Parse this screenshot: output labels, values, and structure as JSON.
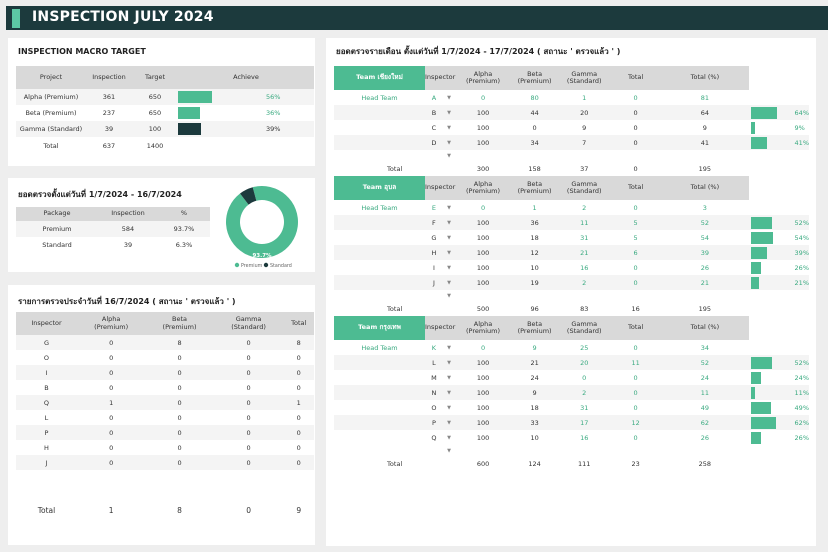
{
  "header": {
    "title": "INSPECTION JULY 2024"
  },
  "macro": {
    "title": "INSPECTION MACRO TARGET",
    "headers": [
      "Project",
      "Inspection",
      "Target",
      "Achieve"
    ],
    "rows": [
      {
        "project": "Alpha (Premium)",
        "inspection": "361",
        "target": "650",
        "pct": "56%",
        "fraction": 0.56,
        "color": "#4dbb92"
      },
      {
        "project": "Beta (Premium)",
        "inspection": "237",
        "target": "650",
        "pct": "36%",
        "fraction": 0.36,
        "color": "#4dbb92"
      },
      {
        "project": "Gamma (Standard)",
        "inspection": "39",
        "target": "100",
        "pct": "39%",
        "fraction": 0.39,
        "color": "#1c3a3d"
      }
    ],
    "total": {
      "label": "Total",
      "inspection": "637",
      "target": "1400"
    }
  },
  "summary": {
    "title": "ยอดตรวจตั้งแต่วันที่ 1/7/2024 - 16/7/2024",
    "headers": [
      "Package",
      "Inspection",
      "%"
    ],
    "rows": [
      {
        "package": "Premium",
        "inspection": "584",
        "pct": "93.7%"
      },
      {
        "package": "Standard",
        "inspection": "39",
        "pct": "6.3%"
      }
    ]
  },
  "donut": {
    "label": "93.7%",
    "premium_fraction": 0.937,
    "legend": [
      "Premium",
      "Standard"
    ],
    "colors": {
      "premium": "#4dbb92",
      "standard": "#1c3a3d"
    }
  },
  "daily": {
    "title": "รายการตรวจประจำวันที่ 16/7/2024 ( สถานะ ' ตรวจแล้ว ' )",
    "headers": [
      "Inspector",
      "Alpha\n(Premium)",
      "Beta\n(Premium)",
      "Gamma\n(Standard)",
      "Total"
    ],
    "rows": [
      [
        "G",
        "0",
        "8",
        "0",
        "8"
      ],
      [
        "O",
        "0",
        "0",
        "0",
        "0"
      ],
      [
        "I",
        "0",
        "0",
        "0",
        "0"
      ],
      [
        "B",
        "0",
        "0",
        "0",
        "0"
      ],
      [
        "Q",
        "1",
        "0",
        "0",
        "1"
      ],
      [
        "L",
        "0",
        "0",
        "0",
        "0"
      ],
      [
        "P",
        "0",
        "0",
        "0",
        "0"
      ],
      [
        "H",
        "0",
        "0",
        "0",
        "0"
      ],
      [
        "J",
        "0",
        "0",
        "0",
        "0"
      ]
    ],
    "total": [
      "Total",
      "1",
      "8",
      "0",
      "9"
    ]
  },
  "monthly": {
    "title": "ยอดตรวจรายเดือน ตั้งแต่วันที่ 1/7/2024 - 17/7/2024 ( สถานะ ' ตรวจแล้ว ' )",
    "col_headers": [
      "Inspector",
      "Target",
      "Alpha\n(Premium)",
      "Beta\n(Premium)",
      "Gamma\n(Standard)",
      "Total",
      "Total (%)"
    ],
    "teams": [
      {
        "name": "Team เชียงใหม่",
        "rows": [
          {
            "team": "Head Team",
            "inspector": "A",
            "target": "0",
            "alpha": "80",
            "beta": "1",
            "gamma": "0",
            "total": "81",
            "pct": "",
            "frac": 0
          },
          {
            "team": "",
            "inspector": "B",
            "target": "100",
            "alpha": "44",
            "beta": "20",
            "gamma": "0",
            "total": "64",
            "pct": "64%",
            "frac": 0.64
          },
          {
            "team": "",
            "inspector": "C",
            "target": "100",
            "alpha": "0",
            "beta": "9",
            "gamma": "0",
            "total": "9",
            "pct": "9%",
            "frac": 0.09
          },
          {
            "team": "",
            "inspector": "D",
            "target": "100",
            "alpha": "34",
            "beta": "7",
            "gamma": "0",
            "total": "41",
            "pct": "41%",
            "frac": 0.41
          }
        ],
        "total": {
          "label": "Total",
          "target": "300",
          "alpha": "158",
          "beta": "37",
          "gamma": "0",
          "total": "195"
        }
      },
      {
        "name": "Team อุบล",
        "rows": [
          {
            "team": "Head Team",
            "inspector": "E",
            "target": "0",
            "alpha": "1",
            "beta": "2",
            "gamma": "0",
            "total": "3",
            "pct": "",
            "frac": 0
          },
          {
            "team": "",
            "inspector": "F",
            "target": "100",
            "alpha": "36",
            "beta": "11",
            "gamma": "5",
            "total": "52",
            "pct": "52%",
            "frac": 0.52
          },
          {
            "team": "",
            "inspector": "G",
            "target": "100",
            "alpha": "18",
            "beta": "31",
            "gamma": "5",
            "total": "54",
            "pct": "54%",
            "frac": 0.54
          },
          {
            "team": "",
            "inspector": "H",
            "target": "100",
            "alpha": "12",
            "beta": "21",
            "gamma": "6",
            "total": "39",
            "pct": "39%",
            "frac": 0.39
          },
          {
            "team": "",
            "inspector": "I",
            "target": "100",
            "alpha": "10",
            "beta": "16",
            "gamma": "0",
            "total": "26",
            "pct": "26%",
            "frac": 0.26
          },
          {
            "team": "",
            "inspector": "J",
            "target": "100",
            "alpha": "19",
            "beta": "2",
            "gamma": "0",
            "total": "21",
            "pct": "21%",
            "frac": 0.21
          }
        ],
        "total": {
          "label": "Total",
          "target": "500",
          "alpha": "96",
          "beta": "83",
          "gamma": "16",
          "total": "195"
        }
      },
      {
        "name": "Team กรุงเทพ",
        "rows": [
          {
            "team": "Head Team",
            "inspector": "K",
            "target": "0",
            "alpha": "9",
            "beta": "25",
            "gamma": "0",
            "total": "34",
            "pct": "",
            "frac": 0
          },
          {
            "team": "",
            "inspector": "L",
            "target": "100",
            "alpha": "21",
            "beta": "20",
            "gamma": "11",
            "total": "52",
            "pct": "52%",
            "frac": 0.52
          },
          {
            "team": "",
            "inspector": "M",
            "target": "100",
            "alpha": "24",
            "beta": "0",
            "gamma": "0",
            "total": "24",
            "pct": "24%",
            "frac": 0.24
          },
          {
            "team": "",
            "inspector": "N",
            "target": "100",
            "alpha": "9",
            "beta": "2",
            "gamma": "0",
            "total": "11",
            "pct": "11%",
            "frac": 0.11
          },
          {
            "team": "",
            "inspector": "O",
            "target": "100",
            "alpha": "18",
            "beta": "31",
            "gamma": "0",
            "total": "49",
            "pct": "49%",
            "frac": 0.49
          },
          {
            "team": "",
            "inspector": "P",
            "target": "100",
            "alpha": "33",
            "beta": "17",
            "gamma": "12",
            "total": "62",
            "pct": "62%",
            "frac": 0.62
          },
          {
            "team": "",
            "inspector": "Q",
            "target": "100",
            "alpha": "10",
            "beta": "16",
            "gamma": "0",
            "total": "26",
            "pct": "26%",
            "frac": 0.26
          }
        ],
        "total": {
          "label": "Total",
          "target": "600",
          "alpha": "124",
          "beta": "111",
          "gamma": "23",
          "total": "258"
        }
      }
    ]
  }
}
